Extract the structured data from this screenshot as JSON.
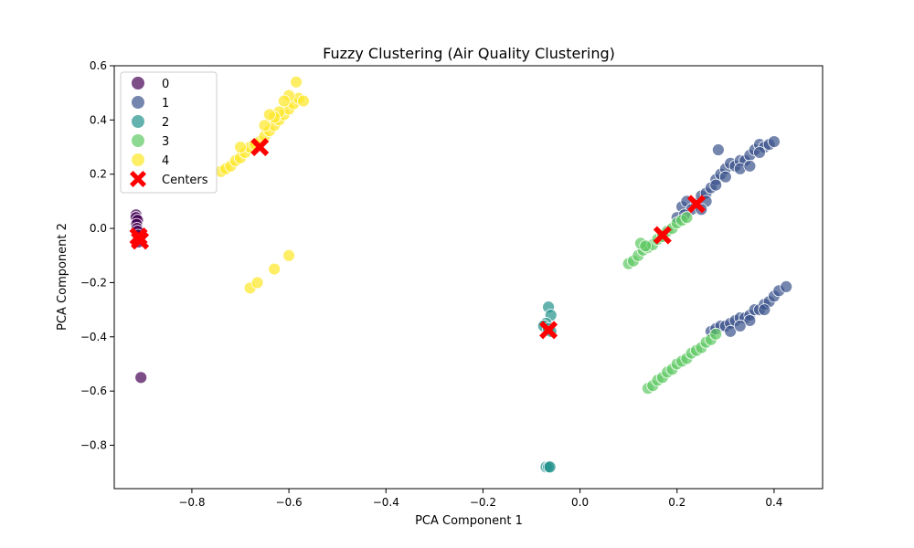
{
  "chart_data": {
    "type": "scatter",
    "title": "Fuzzy Clustering (Air Quality Clustering)",
    "xlabel": "PCA Component 1",
    "ylabel": "PCA Component 2",
    "xlim": [
      -0.96,
      0.5
    ],
    "ylim": [
      -0.96,
      0.6
    ],
    "xticks": [
      -0.8,
      -0.6,
      -0.4,
      -0.2,
      0.0,
      0.2,
      0.4
    ],
    "xtick_labels": [
      "−0.8",
      "−0.6",
      "−0.4",
      "−0.2",
      "0.0",
      "0.2",
      "0.4"
    ],
    "yticks": [
      -0.8,
      -0.6,
      -0.4,
      -0.2,
      0.0,
      0.2,
      0.4,
      0.6
    ],
    "ytick_labels": [
      "−0.8",
      "−0.6",
      "−0.4",
      "−0.2",
      "0.0",
      "0.2",
      "0.4",
      "0.6"
    ],
    "grid": false,
    "legend_position": "top-left",
    "series": [
      {
        "name": "0",
        "color": "#440154",
        "points": [
          [
            -0.915,
            0.05
          ],
          [
            -0.915,
            0.04
          ],
          [
            -0.912,
            0.03
          ],
          [
            -0.914,
            0.015
          ],
          [
            -0.913,
            0.0
          ],
          [
            -0.912,
            -0.01
          ],
          [
            -0.911,
            -0.025
          ],
          [
            -0.91,
            -0.04
          ],
          [
            -0.91,
            -0.05
          ],
          [
            -0.905,
            -0.55
          ]
        ]
      },
      {
        "name": "1",
        "color": "#3b528b",
        "points": [
          [
            0.21,
            0.08
          ],
          [
            0.22,
            0.1
          ],
          [
            0.2,
            0.04
          ],
          [
            0.24,
            0.09
          ],
          [
            0.25,
            0.12
          ],
          [
            0.26,
            0.13
          ],
          [
            0.27,
            0.15
          ],
          [
            0.28,
            0.18
          ],
          [
            0.29,
            0.2
          ],
          [
            0.3,
            0.22
          ],
          [
            0.31,
            0.24
          ],
          [
            0.32,
            0.23
          ],
          [
            0.33,
            0.25
          ],
          [
            0.34,
            0.25
          ],
          [
            0.35,
            0.27
          ],
          [
            0.36,
            0.29
          ],
          [
            0.37,
            0.31
          ],
          [
            0.38,
            0.3
          ],
          [
            0.39,
            0.31
          ],
          [
            0.4,
            0.32
          ],
          [
            0.285,
            0.29
          ],
          [
            0.33,
            0.22
          ],
          [
            0.3,
            0.19
          ],
          [
            0.23,
            0.07
          ],
          [
            0.215,
            0.05
          ],
          [
            0.26,
            0.1
          ],
          [
            0.28,
            0.16
          ],
          [
            0.35,
            0.23
          ],
          [
            0.37,
            0.28
          ],
          [
            0.25,
            0.07
          ],
          [
            0.27,
            -0.38
          ],
          [
            0.28,
            -0.37
          ],
          [
            0.29,
            -0.36
          ],
          [
            0.3,
            -0.36
          ],
          [
            0.31,
            -0.35
          ],
          [
            0.32,
            -0.34
          ],
          [
            0.33,
            -0.33
          ],
          [
            0.34,
            -0.33
          ],
          [
            0.35,
            -0.32
          ],
          [
            0.36,
            -0.3
          ],
          [
            0.37,
            -0.3
          ],
          [
            0.38,
            -0.28
          ],
          [
            0.39,
            -0.27
          ],
          [
            0.4,
            -0.25
          ],
          [
            0.41,
            -0.23
          ],
          [
            0.425,
            -0.215
          ],
          [
            0.35,
            -0.34
          ],
          [
            0.38,
            -0.3
          ],
          [
            0.31,
            -0.38
          ],
          [
            0.33,
            -0.36
          ]
        ]
      },
      {
        "name": "2",
        "color": "#21918c",
        "points": [
          [
            -0.065,
            -0.29
          ],
          [
            -0.06,
            -0.32
          ],
          [
            -0.07,
            -0.35
          ],
          [
            -0.075,
            -0.36
          ],
          [
            -0.065,
            -0.37
          ],
          [
            -0.06,
            -0.38
          ],
          [
            -0.07,
            -0.88
          ],
          [
            -0.065,
            -0.88
          ],
          [
            -0.062,
            -0.88
          ]
        ]
      },
      {
        "name": "3",
        "color": "#5ec962",
        "points": [
          [
            0.1,
            -0.13
          ],
          [
            0.11,
            -0.12
          ],
          [
            0.12,
            -0.1
          ],
          [
            0.13,
            -0.08
          ],
          [
            0.14,
            -0.07
          ],
          [
            0.15,
            -0.06
          ],
          [
            0.16,
            -0.04
          ],
          [
            0.17,
            -0.03
          ],
          [
            0.18,
            -0.01
          ],
          [
            0.19,
            0.0
          ],
          [
            0.2,
            0.02
          ],
          [
            0.21,
            0.03
          ],
          [
            0.22,
            0.04
          ],
          [
            0.125,
            -0.055
          ],
          [
            0.135,
            -0.065
          ],
          [
            0.14,
            -0.59
          ],
          [
            0.15,
            -0.58
          ],
          [
            0.16,
            -0.56
          ],
          [
            0.17,
            -0.55
          ],
          [
            0.18,
            -0.53
          ],
          [
            0.19,
            -0.52
          ],
          [
            0.2,
            -0.5
          ],
          [
            0.21,
            -0.49
          ],
          [
            0.22,
            -0.48
          ],
          [
            0.23,
            -0.46
          ],
          [
            0.24,
            -0.45
          ],
          [
            0.25,
            -0.44
          ],
          [
            0.26,
            -0.42
          ],
          [
            0.27,
            -0.41
          ],
          [
            0.28,
            -0.39
          ]
        ]
      },
      {
        "name": "4",
        "color": "#fde725",
        "points": [
          [
            -0.74,
            0.21
          ],
          [
            -0.73,
            0.22
          ],
          [
            -0.72,
            0.23
          ],
          [
            -0.71,
            0.25
          ],
          [
            -0.7,
            0.26
          ],
          [
            -0.69,
            0.28
          ],
          [
            -0.68,
            0.3
          ],
          [
            -0.67,
            0.31
          ],
          [
            -0.66,
            0.32
          ],
          [
            -0.65,
            0.34
          ],
          [
            -0.64,
            0.36
          ],
          [
            -0.63,
            0.38
          ],
          [
            -0.62,
            0.4
          ],
          [
            -0.61,
            0.42
          ],
          [
            -0.6,
            0.44
          ],
          [
            -0.59,
            0.46
          ],
          [
            -0.58,
            0.48
          ],
          [
            -0.57,
            0.47
          ],
          [
            -0.585,
            0.54
          ],
          [
            -0.6,
            0.49
          ],
          [
            -0.62,
            0.43
          ],
          [
            -0.65,
            0.38
          ],
          [
            -0.63,
            0.41
          ],
          [
            -0.64,
            0.42
          ],
          [
            -0.61,
            0.47
          ],
          [
            -0.7,
            0.3
          ],
          [
            -0.68,
            -0.22
          ],
          [
            -0.665,
            -0.2
          ],
          [
            -0.63,
            -0.15
          ],
          [
            -0.6,
            -0.1
          ]
        ]
      }
    ],
    "centers": {
      "name": "Centers",
      "color": "#ff0000",
      "points": [
        [
          -0.91,
          -0.03
        ],
        [
          -0.907,
          -0.045
        ],
        [
          0.24,
          0.09
        ],
        [
          0.17,
          -0.025
        ],
        [
          -0.66,
          0.3
        ],
        [
          -0.065,
          -0.375
        ]
      ]
    }
  }
}
